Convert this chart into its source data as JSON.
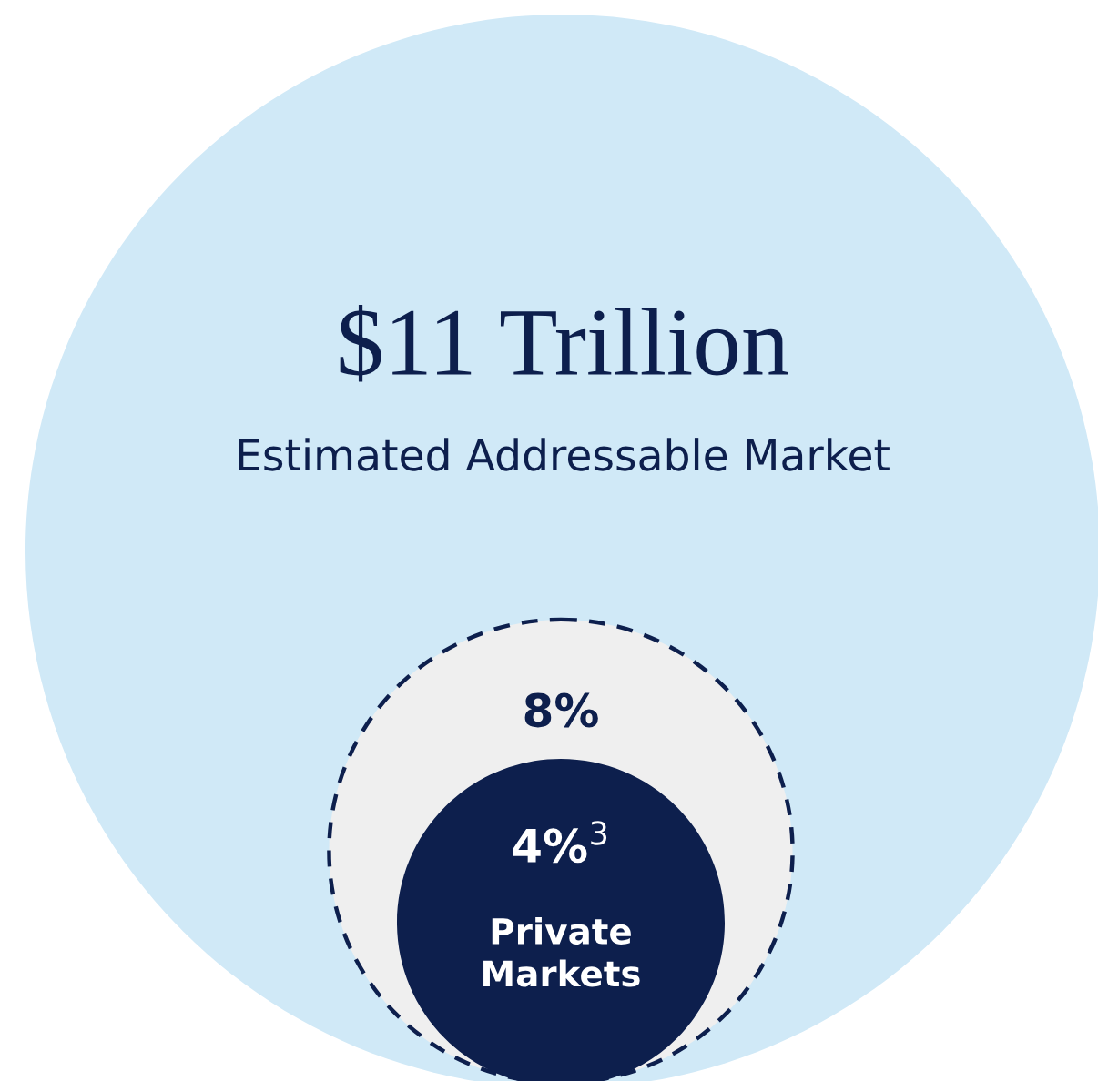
{
  "chart_data": {
    "type": "other",
    "title": "$11 Trillion",
    "subtitle": "Estimated Addressable Market",
    "categories": [
      null,
      "Private Markets"
    ],
    "values": [
      8,
      4
    ],
    "value_labels": [
      "8%",
      "4%$^{3}$"
    ],
    "colors": [
      "#efefef",
      "#0d1f4d"
    ]
  }
}
